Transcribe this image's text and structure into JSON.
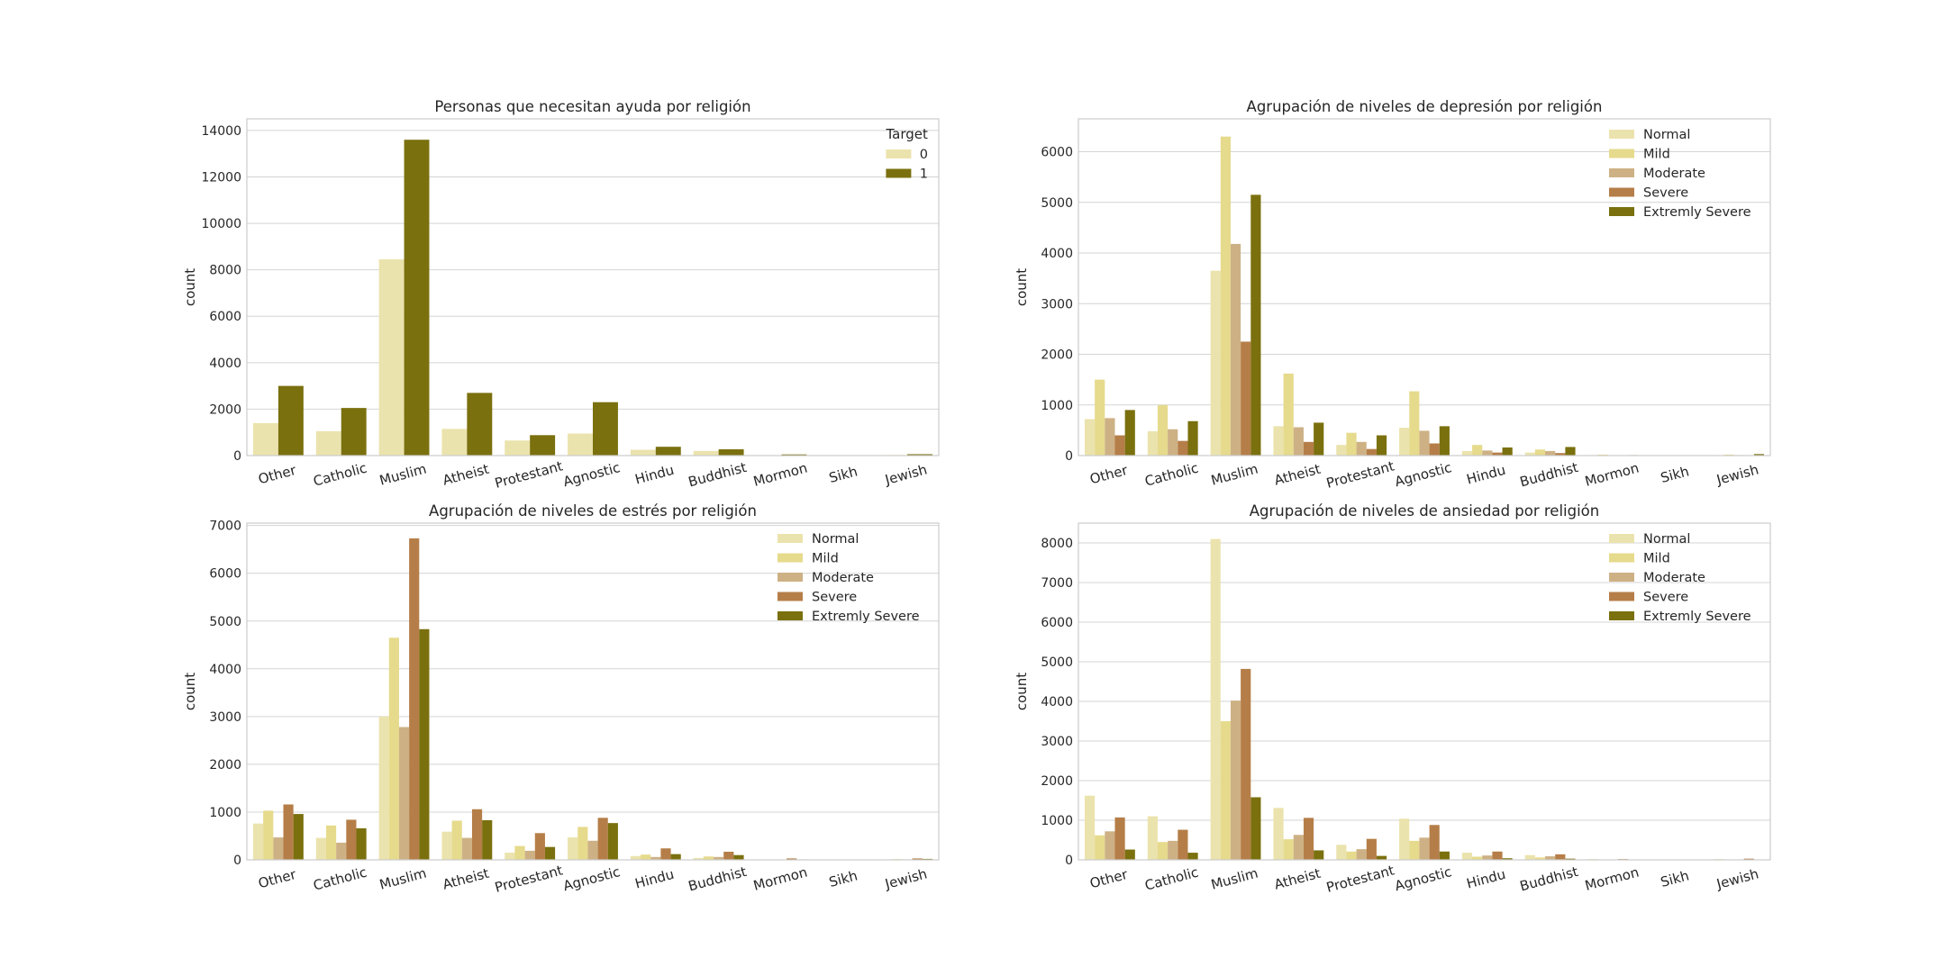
{
  "chart_data": [
    {
      "type": "bar",
      "title": "Personas que necesitan ayuda por religión",
      "xlabel": "",
      "ylabel": "count",
      "ylim": [
        0,
        14500
      ],
      "yticks": [
        0,
        2000,
        4000,
        6000,
        8000,
        10000,
        12000,
        14000
      ],
      "categories": [
        "Other",
        "Catholic",
        "Muslim",
        "Atheist",
        "Protestant",
        "Agnostic",
        "Hindu",
        "Buddhist",
        "Mormon",
        "Sikh",
        "Jewish"
      ],
      "legend_title": "Target",
      "legend_position": "top-right",
      "grid": true,
      "series": [
        {
          "name": "0",
          "color": "#ebe3ad",
          "values": [
            1400,
            1050,
            8450,
            1150,
            650,
            950,
            250,
            200,
            20,
            5,
            25
          ]
        },
        {
          "name": "1",
          "color": "#7a700e",
          "values": [
            3000,
            2050,
            13600,
            2700,
            880,
            2300,
            380,
            270,
            50,
            10,
            60
          ]
        }
      ]
    },
    {
      "type": "bar",
      "title": "Agrupación de niveles de depresión por religión",
      "xlabel": "",
      "ylabel": "count",
      "ylim": [
        0,
        6650
      ],
      "yticks": [
        0,
        1000,
        2000,
        3000,
        4000,
        5000,
        6000
      ],
      "categories": [
        "Other",
        "Catholic",
        "Muslim",
        "Atheist",
        "Protestant",
        "Agnostic",
        "Hindu",
        "Buddhist",
        "Mormon",
        "Sikh",
        "Jewish"
      ],
      "legend_title": "",
      "legend_position": "top-right",
      "grid": true,
      "series": [
        {
          "name": "Normal",
          "color": "#ebe3ad",
          "values": [
            720,
            480,
            3650,
            580,
            210,
            550,
            90,
            60,
            10,
            3,
            10
          ]
        },
        {
          "name": "Mild",
          "color": "#e6da8c",
          "values": [
            1500,
            1000,
            6300,
            1620,
            450,
            1270,
            210,
            120,
            20,
            5,
            20
          ]
        },
        {
          "name": "Moderate",
          "color": "#cdb185",
          "values": [
            740,
            520,
            4180,
            560,
            270,
            490,
            100,
            90,
            8,
            2,
            10
          ]
        },
        {
          "name": "Severe",
          "color": "#b57e48",
          "values": [
            400,
            290,
            2250,
            270,
            130,
            240,
            60,
            50,
            5,
            1,
            5
          ]
        },
        {
          "name": "Extremly Severe",
          "color": "#7a700e",
          "values": [
            900,
            680,
            5150,
            650,
            400,
            580,
            160,
            170,
            10,
            4,
            30
          ]
        }
      ]
    },
    {
      "type": "bar",
      "title": "Agrupación de niveles de estrés por religión",
      "xlabel": "",
      "ylabel": "count",
      "ylim": [
        0,
        7050
      ],
      "yticks": [
        0,
        1000,
        2000,
        3000,
        4000,
        5000,
        6000,
        7000
      ],
      "categories": [
        "Other",
        "Catholic",
        "Muslim",
        "Atheist",
        "Protestant",
        "Agnostic",
        "Hindu",
        "Buddhist",
        "Mormon",
        "Sikh",
        "Jewish"
      ],
      "legend_title": "",
      "legend_position": "top-right",
      "grid": true,
      "series": [
        {
          "name": "Normal",
          "color": "#ebe3ad",
          "values": [
            760,
            460,
            3000,
            590,
            150,
            470,
            80,
            40,
            5,
            2,
            10
          ]
        },
        {
          "name": "Mild",
          "color": "#e6da8c",
          "values": [
            1030,
            720,
            4650,
            820,
            290,
            690,
            110,
            70,
            10,
            3,
            15
          ]
        },
        {
          "name": "Moderate",
          "color": "#cdb185",
          "values": [
            470,
            360,
            2780,
            460,
            190,
            400,
            60,
            60,
            5,
            2,
            10
          ]
        },
        {
          "name": "Severe",
          "color": "#b57e48",
          "values": [
            1160,
            840,
            6730,
            1060,
            560,
            880,
            240,
            170,
            30,
            5,
            30
          ]
        },
        {
          "name": "Extremly Severe",
          "color": "#7a700e",
          "values": [
            960,
            660,
            4830,
            830,
            270,
            770,
            120,
            100,
            10,
            2,
            20
          ]
        }
      ]
    },
    {
      "type": "bar",
      "title": "Agrupación de niveles de ansiedad por religión",
      "xlabel": "",
      "ylabel": "count",
      "ylim": [
        0,
        8500
      ],
      "yticks": [
        0,
        1000,
        2000,
        3000,
        4000,
        5000,
        6000,
        7000,
        8000
      ],
      "categories": [
        "Other",
        "Catholic",
        "Muslim",
        "Atheist",
        "Protestant",
        "Agnostic",
        "Hindu",
        "Buddhist",
        "Mormon",
        "Sikh",
        "Jewish"
      ],
      "legend_title": "",
      "legend_position": "top-right",
      "grid": true,
      "series": [
        {
          "name": "Normal",
          "color": "#ebe3ad",
          "values": [
            1620,
            1100,
            8100,
            1310,
            380,
            1040,
            180,
            120,
            20,
            5,
            20
          ]
        },
        {
          "name": "Mild",
          "color": "#e6da8c",
          "values": [
            620,
            450,
            3500,
            520,
            210,
            480,
            80,
            60,
            5,
            2,
            10
          ]
        },
        {
          "name": "Moderate",
          "color": "#cdb185",
          "values": [
            720,
            480,
            4020,
            630,
            270,
            560,
            110,
            90,
            10,
            2,
            10
          ]
        },
        {
          "name": "Severe",
          "color": "#b57e48",
          "values": [
            1070,
            760,
            4820,
            1060,
            530,
            880,
            210,
            140,
            20,
            4,
            30
          ]
        },
        {
          "name": "Extremly Severe",
          "color": "#7a700e",
          "values": [
            260,
            180,
            1580,
            240,
            100,
            210,
            40,
            30,
            3,
            1,
            5
          ]
        }
      ]
    }
  ]
}
